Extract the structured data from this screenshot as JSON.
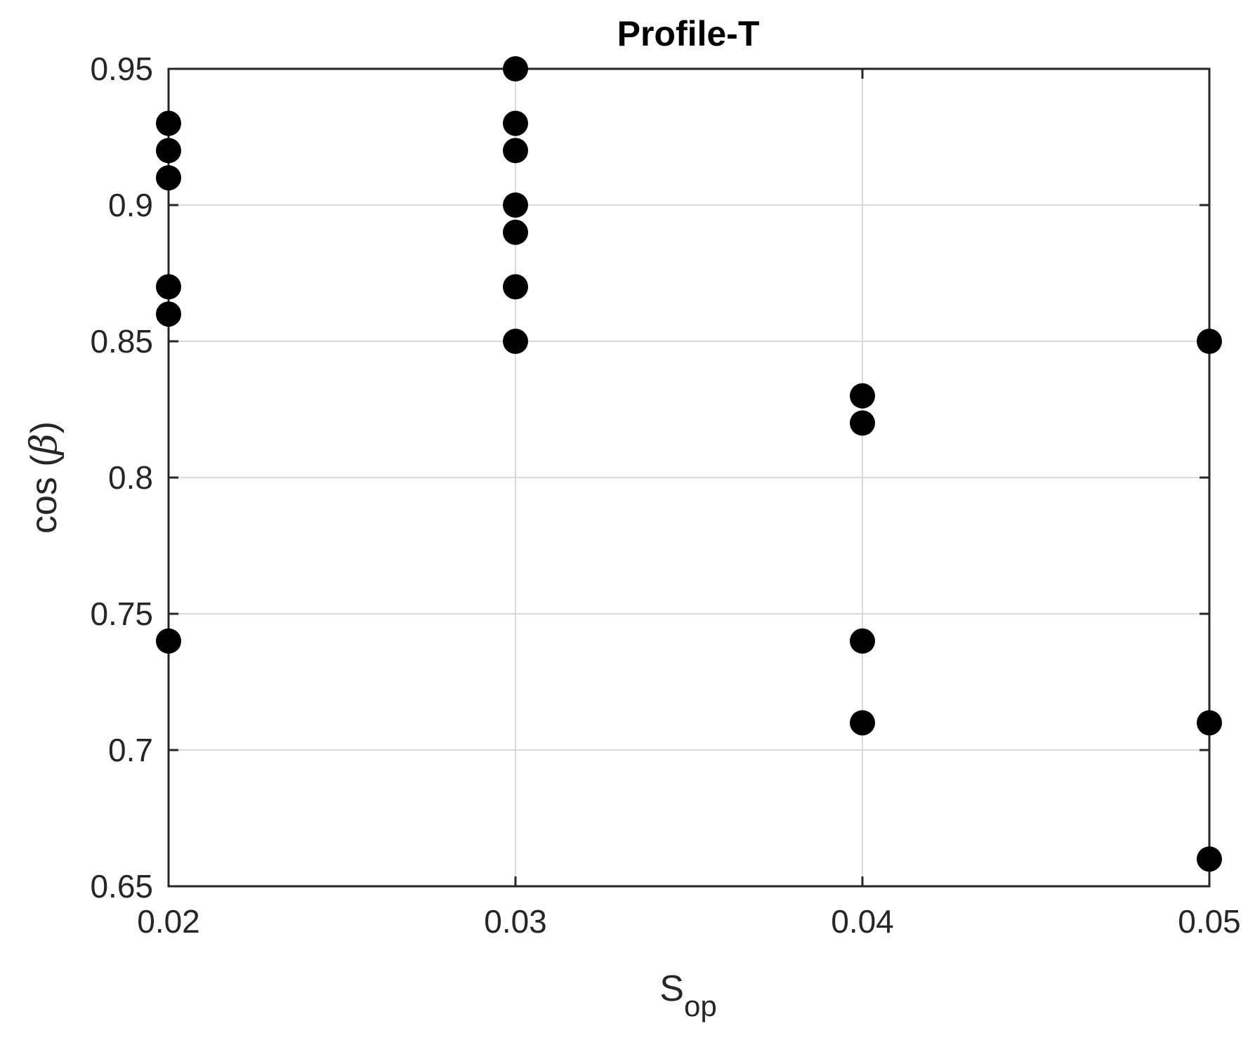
{
  "chart_data": {
    "type": "scatter",
    "title": "Profile-T",
    "xlabel": {
      "main": "S",
      "sub": "op"
    },
    "ylabel": {
      "prefix": "cos (",
      "symbol": "β",
      "suffix": ")"
    },
    "xlim": [
      0.02,
      0.05
    ],
    "ylim": [
      0.65,
      0.95
    ],
    "xticks": [
      "0.02",
      "0.03",
      "0.04",
      "0.05"
    ],
    "yticks": [
      "0.65",
      "0.7",
      "0.75",
      "0.8",
      "0.85",
      "0.9",
      "0.95"
    ],
    "grid": true,
    "marker_color": "#000000",
    "grid_color": "#d9d9d9",
    "axis_color": "#262626",
    "points": [
      {
        "x": 0.02,
        "y": 0.93
      },
      {
        "x": 0.02,
        "y": 0.92
      },
      {
        "x": 0.02,
        "y": 0.91
      },
      {
        "x": 0.02,
        "y": 0.87
      },
      {
        "x": 0.02,
        "y": 0.86
      },
      {
        "x": 0.02,
        "y": 0.74
      },
      {
        "x": 0.03,
        "y": 0.95
      },
      {
        "x": 0.03,
        "y": 0.93
      },
      {
        "x": 0.03,
        "y": 0.92
      },
      {
        "x": 0.03,
        "y": 0.9
      },
      {
        "x": 0.03,
        "y": 0.89
      },
      {
        "x": 0.03,
        "y": 0.87
      },
      {
        "x": 0.03,
        "y": 0.85
      },
      {
        "x": 0.04,
        "y": 0.83
      },
      {
        "x": 0.04,
        "y": 0.82
      },
      {
        "x": 0.04,
        "y": 0.74
      },
      {
        "x": 0.04,
        "y": 0.71
      },
      {
        "x": 0.05,
        "y": 0.85
      },
      {
        "x": 0.05,
        "y": 0.71
      },
      {
        "x": 0.05,
        "y": 0.66
      }
    ]
  }
}
